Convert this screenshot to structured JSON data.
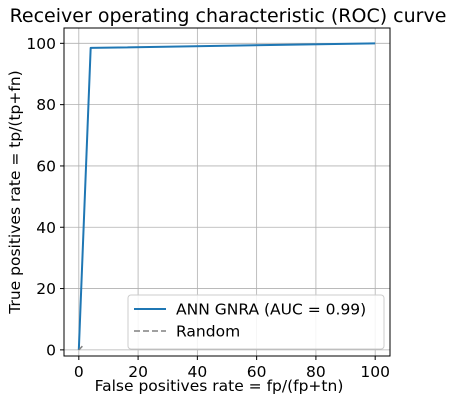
{
  "chart_data": {
    "type": "line",
    "title": "Receiver operating characteristic (ROC) curve",
    "xlabel": "False positives rate = fp/(fp+tn)",
    "ylabel": "True positives rate = tp/(tp+fn)",
    "xlim": [
      -5,
      105
    ],
    "ylim": [
      -2,
      105
    ],
    "xticks": [
      0,
      20,
      40,
      60,
      80,
      100
    ],
    "yticks": [
      0,
      20,
      40,
      60,
      80,
      100
    ],
    "grid": true,
    "legend_position": "lower-right",
    "series": [
      {
        "name": "ANN GNRA (AUC = 0.99)",
        "color": "#1f77b4",
        "style": "solid",
        "x": [
          0,
          4,
          100
        ],
        "y": [
          0,
          98.5,
          100
        ]
      },
      {
        "name": "Random",
        "color": "#808080",
        "style": "dashed",
        "x": [
          0,
          1.2
        ],
        "y": [
          0,
          1.2
        ]
      }
    ]
  }
}
